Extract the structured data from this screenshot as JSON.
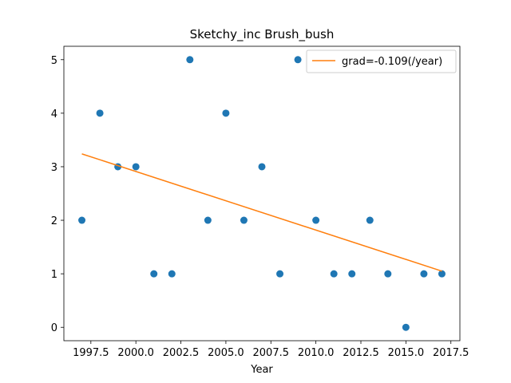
{
  "chart_data": {
    "type": "scatter",
    "title": "Sketchy_inc Brush_bush",
    "xlabel": "Year",
    "ylabel": "",
    "xlim": [
      1996.0,
      2018.0
    ],
    "ylim": [
      -0.25,
      5.25
    ],
    "xticks": [
      1997.5,
      2000.0,
      2002.5,
      2005.0,
      2007.5,
      2010.0,
      2012.5,
      2015.0,
      2017.5
    ],
    "xtick_labels": [
      "1997.5",
      "2000.0",
      "2002.5",
      "2005.0",
      "2007.5",
      "2010.0",
      "2012.5",
      "2015.0",
      "2017.5"
    ],
    "yticks": [
      0,
      1,
      2,
      3,
      4,
      5
    ],
    "ytick_labels": [
      "0",
      "1",
      "2",
      "3",
      "4",
      "5"
    ],
    "grid": false,
    "legend_position": "top-right",
    "series": [
      {
        "kind": "scatter",
        "color": "#1f77b4",
        "x": [
          1997,
          1998,
          1999,
          2000,
          2001,
          2002,
          2003,
          2004,
          2005,
          2006,
          2007,
          2008,
          2009,
          2010,
          2011,
          2012,
          2013,
          2014,
          2015,
          2016,
          2017
        ],
        "y": [
          2,
          4,
          3,
          3,
          1,
          1,
          5,
          2,
          4,
          2,
          3,
          1,
          5,
          2,
          1,
          1,
          2,
          1,
          0,
          1,
          1
        ]
      },
      {
        "kind": "line",
        "name": "grad=-0.109(/year)",
        "color": "#ff7f0e",
        "x": [
          1997,
          2017
        ],
        "y": [
          3.24,
          1.05
        ]
      }
    ]
  }
}
